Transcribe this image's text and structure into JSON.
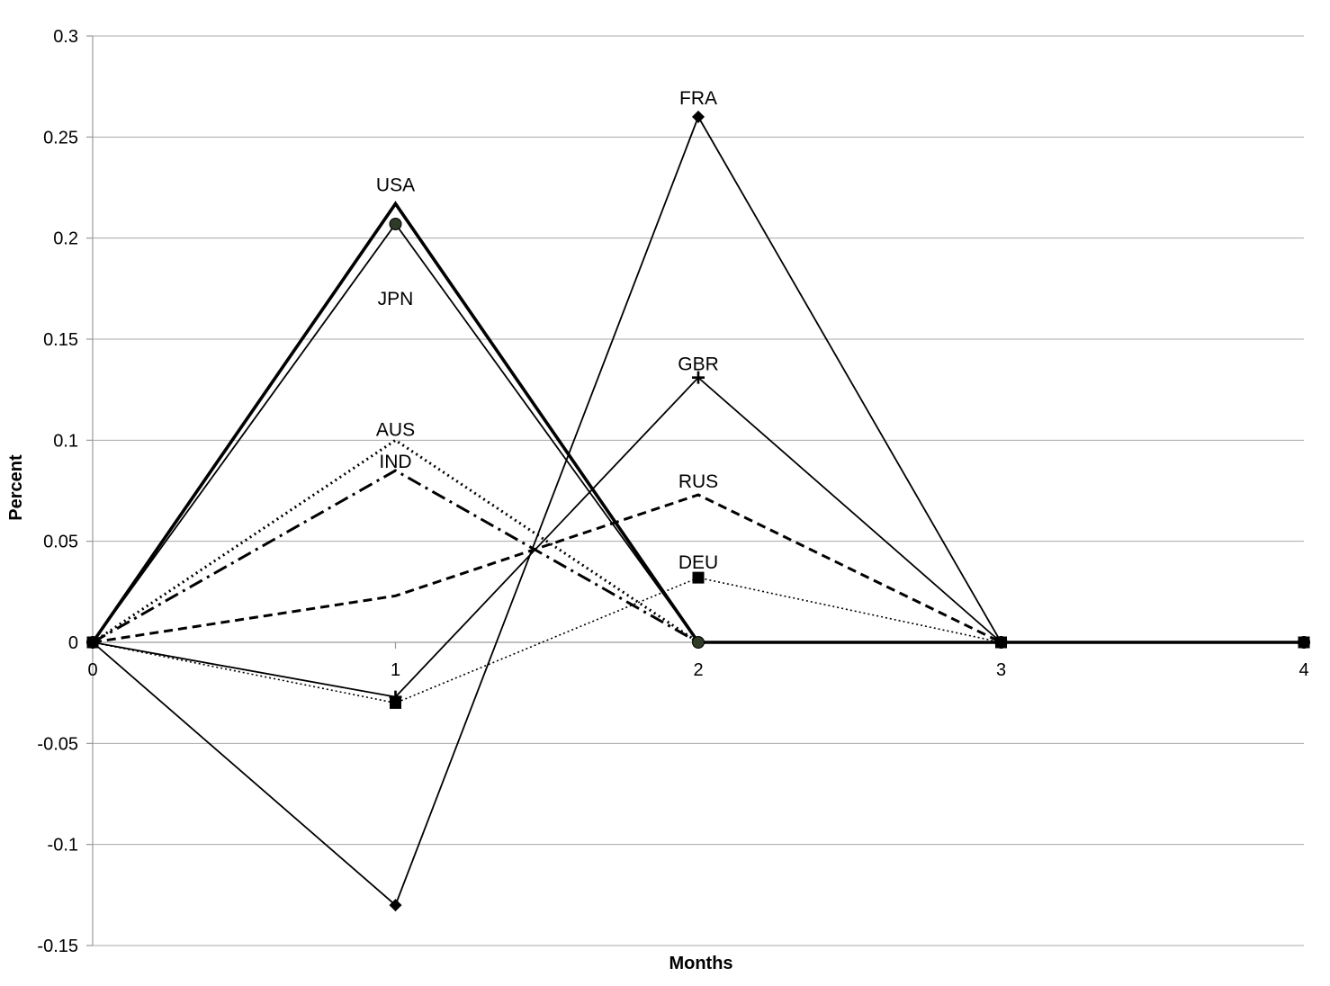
{
  "chart_data": {
    "type": "line",
    "xlabel": "Months",
    "ylabel": "Percent",
    "x": [
      0,
      1,
      2,
      3,
      4
    ],
    "x_tick_labels": [
      "0",
      "1",
      "2",
      "3",
      "4"
    ],
    "y_ticks": [
      0.3,
      0.25,
      0.2,
      0.15,
      0.1,
      0.05,
      0,
      -0.05,
      -0.1,
      -0.15
    ],
    "y_tick_labels": [
      "0.3",
      "0.25",
      "0.2",
      "0.15",
      "0.1",
      "0.05",
      "0",
      "-0.05",
      "-0.1",
      "-0.15"
    ],
    "xlim": [
      0,
      4
    ],
    "ylim": [
      -0.15,
      0.3
    ],
    "grid": true,
    "legend": "none",
    "series": [
      {
        "name": "USA",
        "values": [
          0,
          0.217,
          0,
          0,
          0
        ],
        "label_at": 1,
        "style": "thick-solid",
        "marker": "none",
        "color": "#000000"
      },
      {
        "name": "JPN",
        "values": [
          0,
          0.207,
          0,
          0,
          0
        ],
        "label_at": 1,
        "style": "solid",
        "marker": "circle",
        "color": "#000000"
      },
      {
        "name": "FRA",
        "values": [
          0,
          -0.13,
          0.26,
          0,
          0
        ],
        "label_at": 2,
        "style": "solid",
        "marker": "diamond",
        "color": "#000000"
      },
      {
        "name": "GBR",
        "values": [
          0,
          -0.027,
          0.131,
          0,
          0
        ],
        "label_at": 2,
        "style": "solid",
        "marker": "plus",
        "color": "#000000"
      },
      {
        "name": "AUS",
        "values": [
          0,
          0.1,
          0,
          0,
          0
        ],
        "label_at": 1,
        "style": "dotted",
        "marker": "none",
        "color": "#000000"
      },
      {
        "name": "IND",
        "values": [
          0,
          0.085,
          0,
          0,
          0
        ],
        "label_at": 1,
        "style": "dashdot",
        "marker": "none",
        "color": "#000000"
      },
      {
        "name": "RUS",
        "values": [
          0,
          0.023,
          0.073,
          0,
          0
        ],
        "label_at": 2,
        "style": "dashed",
        "marker": "none",
        "color": "#000000"
      },
      {
        "name": "DEU",
        "values": [
          0,
          -0.03,
          0.032,
          0,
          0
        ],
        "label_at": 2,
        "style": "fine-dotted",
        "marker": "square",
        "color": "#000000"
      }
    ]
  }
}
